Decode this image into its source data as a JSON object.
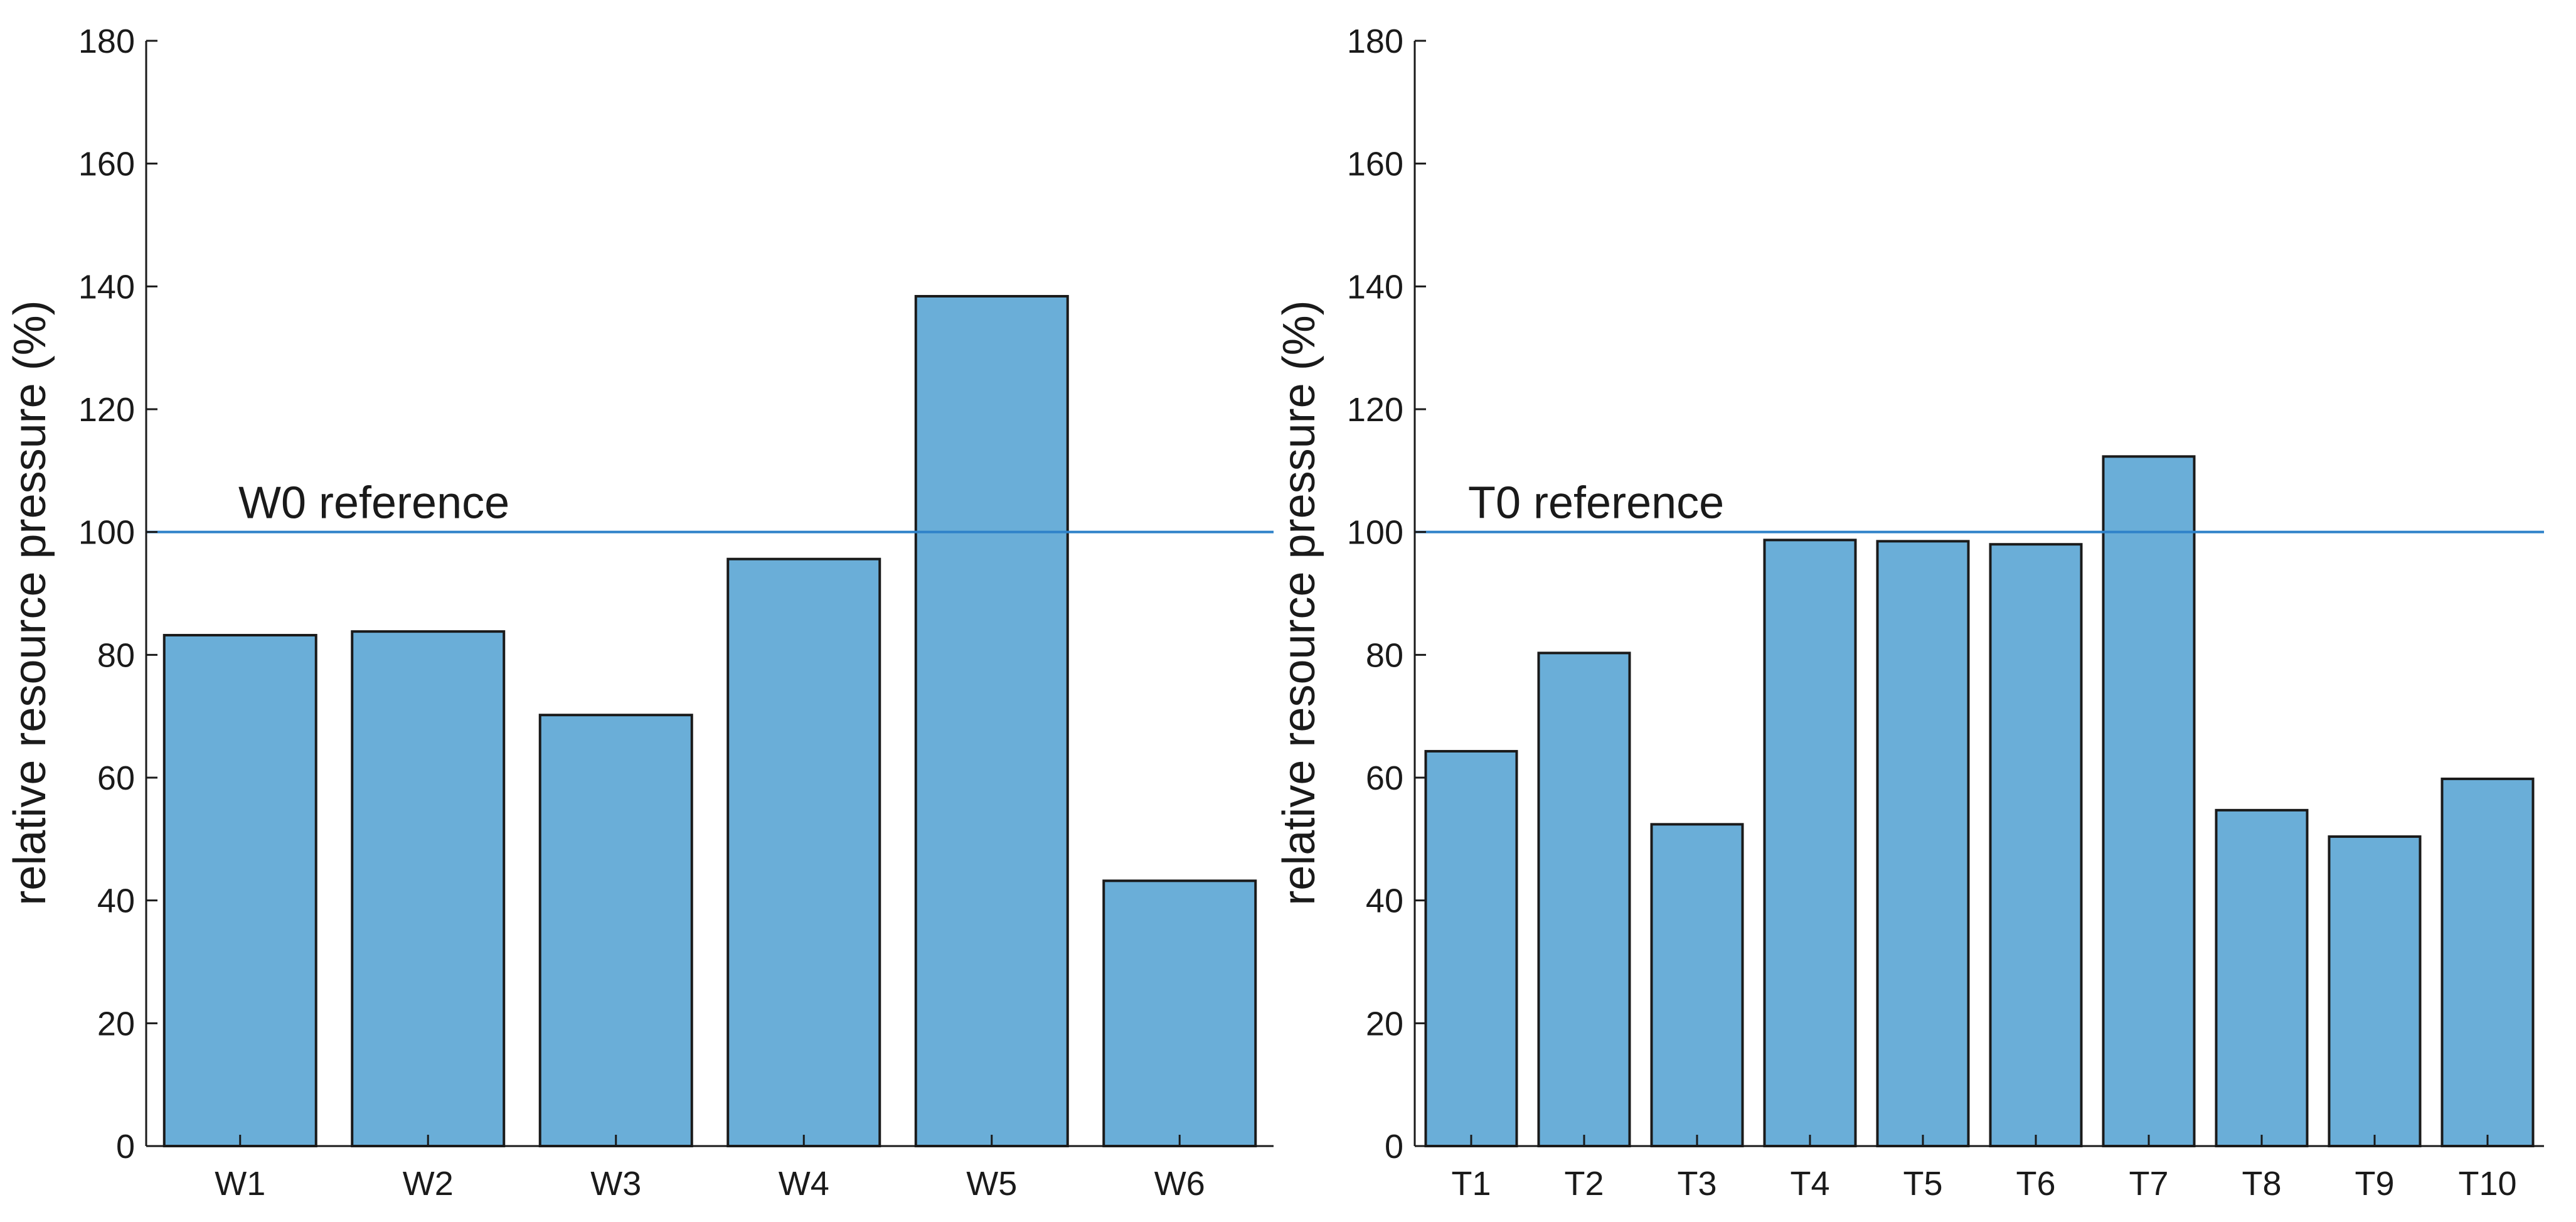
{
  "colors": {
    "bar_fill": "#6aaed8",
    "bar_edge": "#1a1a1a",
    "reference_line": "#2f82c9",
    "axis": "#1a1a1a",
    "background": "#ffffff"
  },
  "chart_data": [
    {
      "type": "bar",
      "title": "",
      "xlabel": "",
      "ylabel": "relative resource pressure (%)",
      "ylim": [
        0,
        180
      ],
      "yticks": [
        "0",
        "20",
        "40",
        "60",
        "80",
        "100",
        "120",
        "140",
        "160",
        "180"
      ],
      "categories": [
        "W1",
        "W2",
        "W3",
        "W4",
        "W5",
        "W6"
      ],
      "values": [
        83.2,
        83.8,
        70.2,
        95.6,
        138.4,
        43.2
      ],
      "reference": {
        "value": 100,
        "label": "W0 reference"
      },
      "grid": false
    },
    {
      "type": "bar",
      "title": "",
      "xlabel": "",
      "ylabel": "relative resource pressure (%)",
      "ylim": [
        0,
        180
      ],
      "yticks": [
        "0",
        "20",
        "40",
        "60",
        "80",
        "100",
        "120",
        "140",
        "160",
        "180"
      ],
      "categories": [
        "T1",
        "T2",
        "T3",
        "T4",
        "T5",
        "T6",
        "T7",
        "T8",
        "T9",
        "T10"
      ],
      "values": [
        64.3,
        80.3,
        52.4,
        98.7,
        98.5,
        98.0,
        112.3,
        54.7,
        50.4,
        59.8
      ],
      "reference": {
        "value": 100,
        "label": "T0 reference"
      },
      "grid": false
    }
  ]
}
